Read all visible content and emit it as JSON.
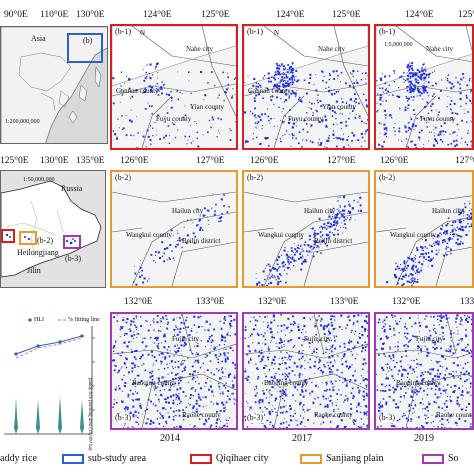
{
  "overview_map": {
    "lon_ticks": [
      "90°0E",
      "110°0E",
      "130°0E"
    ],
    "labels": {
      "asia": "Asia",
      "b_tag": "(b)",
      "scale": "1:200,000,000"
    }
  },
  "heilongjiang_map": {
    "lon_ticks": [
      "125°0E",
      "130°0E",
      "135°0E"
    ],
    "labels": {
      "russia": "Russia",
      "scale": "1:50,000,000",
      "heilongjiang": "Heilongjiang",
      "jilin": "Jilin",
      "b1": "(b-1)",
      "b2": "(b-2)",
      "b3": "(b-3)"
    }
  },
  "chart": {
    "legend_hli": "HLI",
    "legend_fit": "% fitting line",
    "ylabel": "paddy rice planting area (10,000 ha)",
    "years": [
      "2014",
      "2017",
      "2019"
    ]
  },
  "row1": {
    "lon_ticks": [
      "124°0E",
      "125°0E"
    ],
    "tag": "(b-1)",
    "north": "N",
    "scale": "1:5,000,000",
    "places": {
      "nahe": "Nahe city",
      "gannan": "Gannan county",
      "yian": "Yian county",
      "fuyu": "Fuyu county"
    }
  },
  "row2": {
    "lon_ticks": [
      "126°0E",
      "127°0E"
    ],
    "tag": "(b-2)",
    "places": {
      "hailun": "Hailun city",
      "wangkui": "Wangkui county",
      "beilin": "Beilin district"
    }
  },
  "row3": {
    "lon_ticks": [
      "132°0E",
      "133°0E"
    ],
    "tag": "(b-3)",
    "places": {
      "fujin": "Fujin city",
      "baoqing": "Baoqing county",
      "raohe": "Raohe county"
    }
  },
  "years": [
    "2014",
    "2017",
    "2019"
  ],
  "legend": {
    "paddy_rice": "addy rice",
    "sub_study_area": "sub-study area",
    "qiqihaer": "Qiqihaer city",
    "sanjiang": "Sanjiang plain",
    "truncated": "So"
  },
  "colors": {
    "rice": "#1f34d6",
    "red": "#d62020",
    "orange": "#e59a2b",
    "purple": "#a23bb1",
    "blue": "#2a63c5"
  }
}
